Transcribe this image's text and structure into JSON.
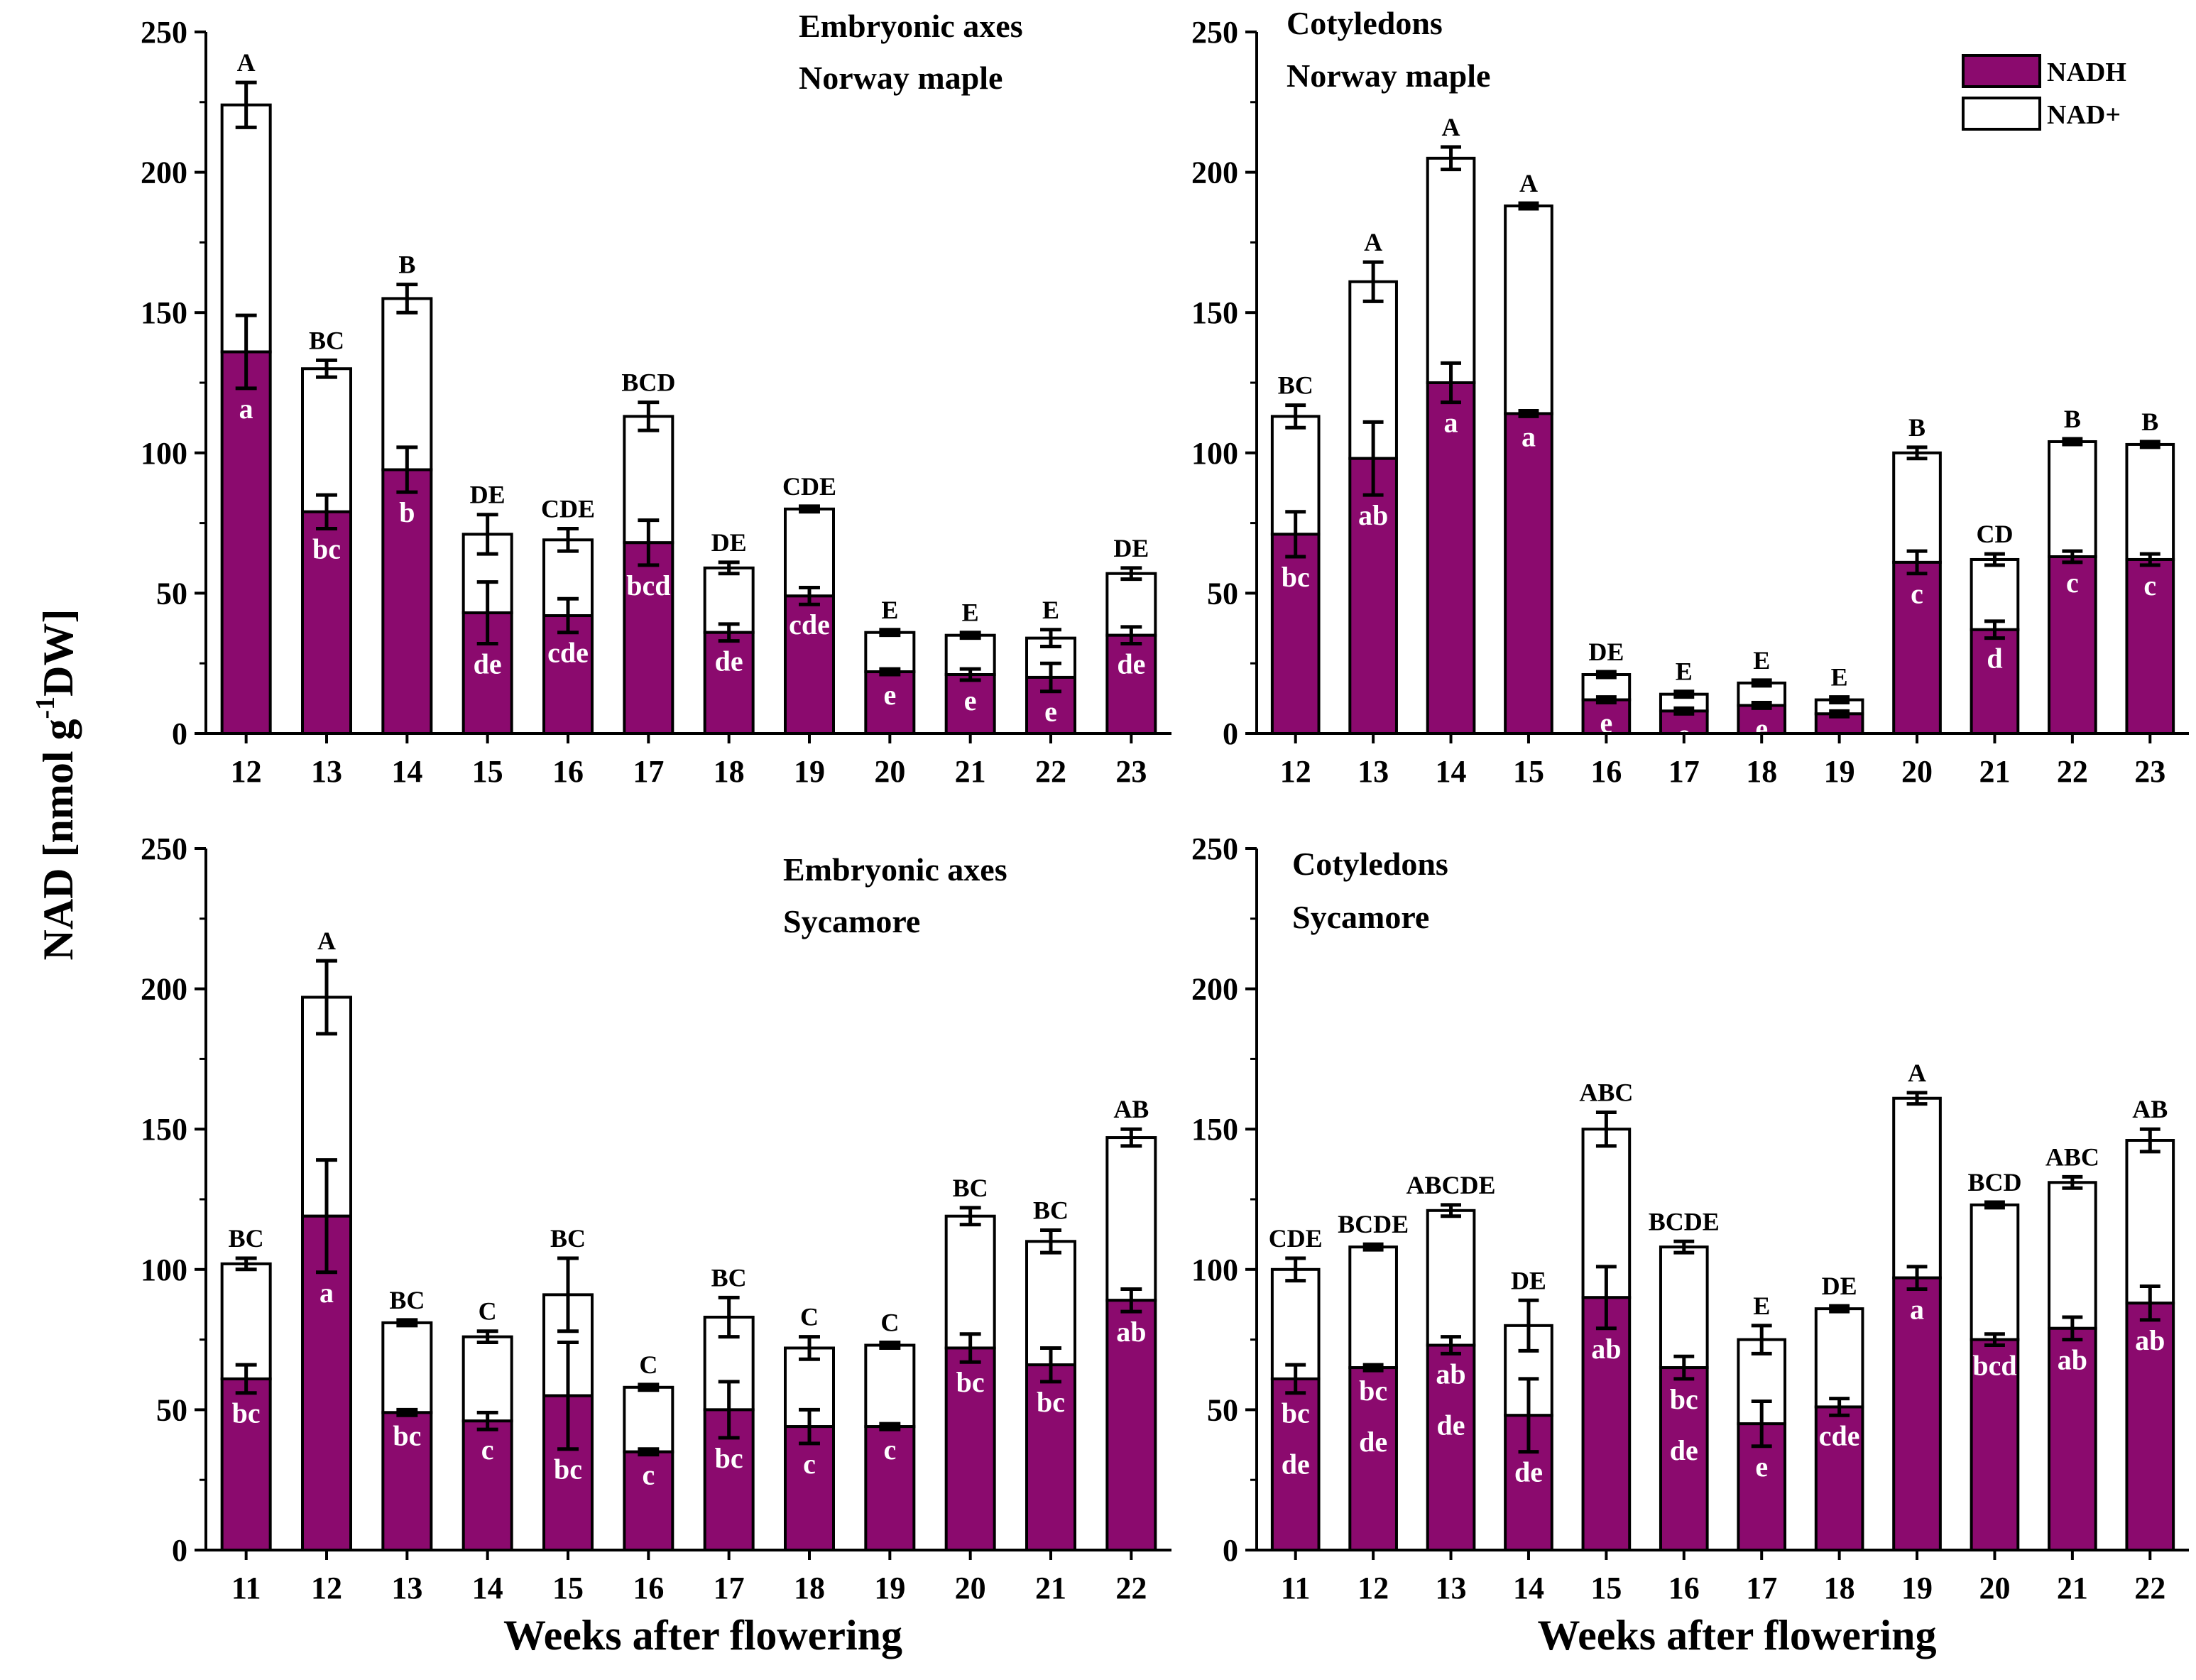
{
  "colors": {
    "nadh": "#8B0A6E",
    "nad_plus": "#ffffff",
    "axis": "#000000"
  },
  "y_axis_label": {
    "main": "NAD [nmol g",
    "sup": "-1",
    "tail": "DW]"
  },
  "legend": {
    "placement": "top-right",
    "items": [
      "NADH",
      "NAD+"
    ]
  },
  "chart_data": [
    {
      "type": "bar",
      "stacked": true,
      "title": [
        "Embryonic axes",
        "Norway maple"
      ],
      "xlabel": "",
      "ylim": [
        0,
        250
      ],
      "yticks": [
        0,
        50,
        100,
        150,
        200,
        250
      ],
      "categories": [
        "12",
        "13",
        "14",
        "15",
        "16",
        "17",
        "18",
        "19",
        "20",
        "21",
        "22",
        "23"
      ],
      "series": [
        {
          "name": "NADH",
          "values": [
            136,
            79,
            94,
            43,
            42,
            68,
            36,
            49,
            22,
            21,
            20,
            35
          ],
          "errors": [
            13,
            6,
            8,
            11,
            6,
            8,
            3,
            3,
            1,
            2,
            5,
            3
          ]
        },
        {
          "name": "NAD+",
          "totals": [
            224,
            130,
            155,
            71,
            69,
            113,
            59,
            80,
            36,
            35,
            34,
            57
          ],
          "errors": [
            8,
            3,
            5,
            7,
            4,
            5,
            2,
            1,
            1,
            1,
            3,
            2
          ]
        }
      ],
      "upper_letters": [
        "A",
        "BC",
        "B",
        "DE",
        "CDE",
        "BCD",
        "DE",
        "CDE",
        "E",
        "E",
        "E",
        "DE"
      ],
      "lower_letters": [
        [
          "a"
        ],
        [
          "bc"
        ],
        [
          "b"
        ],
        [
          "de"
        ],
        [
          "cde"
        ],
        [
          "bcd"
        ],
        [
          "de"
        ],
        [
          "cde"
        ],
        [
          "e"
        ],
        [
          "e"
        ],
        [
          "e"
        ],
        [
          "de"
        ]
      ]
    },
    {
      "type": "bar",
      "stacked": true,
      "title": [
        "Cotyledons",
        "Norway maple"
      ],
      "xlabel": "",
      "ylim": [
        0,
        250
      ],
      "yticks": [
        0,
        50,
        100,
        150,
        200,
        250
      ],
      "categories": [
        "12",
        "13",
        "14",
        "15",
        "16",
        "17",
        "18",
        "19",
        "20",
        "21",
        "22",
        "23"
      ],
      "series": [
        {
          "name": "NADH",
          "values": [
            71,
            98,
            125,
            114,
            12,
            8,
            10,
            7,
            61,
            37,
            63,
            62
          ],
          "errors": [
            8,
            13,
            7,
            1,
            1,
            1,
            1,
            1,
            4,
            3,
            2,
            2
          ]
        },
        {
          "name": "NAD+",
          "totals": [
            113,
            161,
            205,
            188,
            21,
            14,
            18,
            12,
            100,
            62,
            104,
            103
          ],
          "errors": [
            4,
            7,
            4,
            1,
            1,
            1,
            1,
            1,
            2,
            2,
            1,
            1
          ]
        }
      ],
      "upper_letters": [
        "BC",
        "A",
        "A",
        "A",
        "DE",
        "E",
        "E",
        "E",
        "B",
        "CD",
        "B",
        "B"
      ],
      "lower_letters": [
        [
          "bc"
        ],
        [
          "ab"
        ],
        [
          "a"
        ],
        [
          "a"
        ],
        [
          "e"
        ],
        [
          "e"
        ],
        [
          "e"
        ],
        [
          "e"
        ],
        [
          "c"
        ],
        [
          "d"
        ],
        [
          "c"
        ],
        [
          "c"
        ]
      ]
    },
    {
      "type": "bar",
      "stacked": true,
      "title": [
        "Embryonic axes",
        "Sycamore"
      ],
      "xlabel": "Weeks after flowering",
      "ylim": [
        0,
        250
      ],
      "yticks": [
        0,
        50,
        100,
        150,
        200,
        250
      ],
      "categories": [
        "11",
        "12",
        "13",
        "14",
        "15",
        "16",
        "17",
        "18",
        "19",
        "20",
        "21",
        "22"
      ],
      "series": [
        {
          "name": "NADH",
          "values": [
            61,
            119,
            49,
            46,
            55,
            35,
            50,
            44,
            44,
            72,
            66,
            89
          ],
          "errors": [
            5,
            20,
            1,
            3,
            19,
            1,
            10,
            6,
            1,
            5,
            6,
            4
          ]
        },
        {
          "name": "NAD+",
          "totals": [
            102,
            197,
            81,
            76,
            91,
            58,
            83,
            72,
            73,
            119,
            110,
            147
          ],
          "errors": [
            2,
            13,
            1,
            2,
            13,
            1,
            7,
            4,
            1,
            3,
            4,
            3
          ]
        }
      ],
      "upper_letters": [
        "BC",
        "A",
        "BC",
        "C",
        "BC",
        "C",
        "BC",
        "C",
        "C",
        "BC",
        "BC",
        "AB"
      ],
      "lower_letters": [
        [
          "bc"
        ],
        [
          "a"
        ],
        [
          "bc"
        ],
        [
          "c"
        ],
        [
          "bc"
        ],
        [
          "c"
        ],
        [
          "bc"
        ],
        [
          "c"
        ],
        [
          "c"
        ],
        [
          "bc"
        ],
        [
          "bc"
        ],
        [
          "ab"
        ]
      ]
    },
    {
      "type": "bar",
      "stacked": true,
      "title": [
        "Cotyledons",
        "Sycamore"
      ],
      "xlabel": "Weeks after flowering",
      "ylim": [
        0,
        250
      ],
      "yticks": [
        0,
        50,
        100,
        150,
        200,
        250
      ],
      "categories": [
        "11",
        "12",
        "13",
        "14",
        "15",
        "16",
        "17",
        "18",
        "19",
        "20",
        "21",
        "22"
      ],
      "series": [
        {
          "name": "NADH",
          "values": [
            61,
            65,
            73,
            48,
            90,
            65,
            45,
            51,
            97,
            75,
            79,
            88
          ],
          "errors": [
            5,
            1,
            3,
            13,
            11,
            4,
            8,
            3,
            4,
            2,
            4,
            6
          ]
        },
        {
          "name": "NAD+",
          "totals": [
            100,
            108,
            121,
            80,
            150,
            108,
            75,
            86,
            161,
            123,
            131,
            146
          ],
          "errors": [
            4,
            1,
            2,
            9,
            6,
            2,
            5,
            1,
            2,
            1,
            2,
            4
          ]
        }
      ],
      "upper_letters": [
        "CDE",
        "BCDE",
        "ABCDE",
        "DE",
        "ABC",
        "BCDE",
        "E",
        "DE",
        "A",
        "BCD",
        "ABC",
        "AB"
      ],
      "lower_letters": [
        [
          "bc",
          "de"
        ],
        [
          "bc",
          "de"
        ],
        [
          "ab",
          "de"
        ],
        [
          "de"
        ],
        [
          "ab"
        ],
        [
          "bc",
          "de"
        ],
        [
          "e"
        ],
        [
          "cde"
        ],
        [
          "a"
        ],
        [
          "bcd"
        ],
        [
          "ab"
        ],
        [
          "ab"
        ]
      ]
    }
  ]
}
